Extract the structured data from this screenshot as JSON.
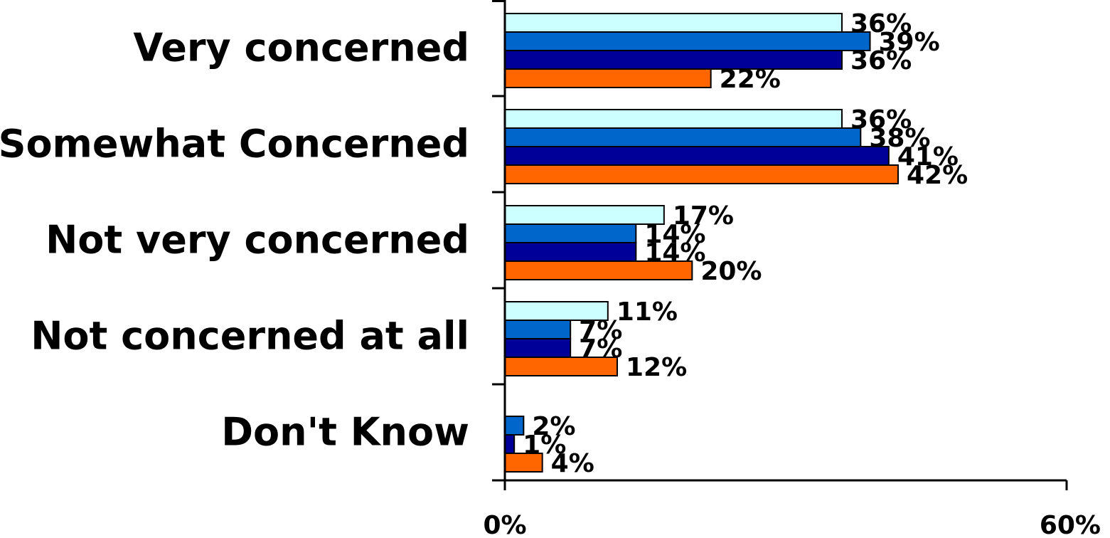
{
  "chart_data": {
    "type": "bar",
    "orientation": "horizontal",
    "title": "",
    "xlabel": "",
    "ylabel": "",
    "xlim": [
      0,
      60
    ],
    "x_ticks": [
      "0%",
      "60%"
    ],
    "grid": false,
    "legend": "none",
    "value_suffix": "%",
    "categories": [
      "Very concerned",
      "Somewhat Concerned",
      "Not very concerned",
      "Not concerned at all",
      "Don't Know"
    ],
    "series": [
      {
        "color": "#CCFFFF",
        "values": [
          36,
          36,
          17,
          11,
          null
        ]
      },
      {
        "color": "#0066CC",
        "values": [
          39,
          38,
          14,
          7,
          2
        ]
      },
      {
        "color": "#000099",
        "values": [
          36,
          41,
          14,
          7,
          1
        ]
      },
      {
        "color": "#FF6600",
        "values": [
          22,
          42,
          20,
          12,
          4
        ]
      }
    ]
  }
}
